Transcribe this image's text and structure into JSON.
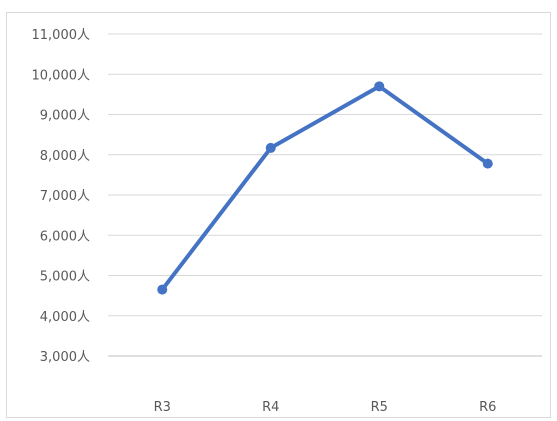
{
  "chart_data": {
    "type": "line",
    "title": "",
    "xlabel": "",
    "ylabel": "",
    "categories": [
      "R3",
      "R4",
      "R5",
      "R6"
    ],
    "series": [
      {
        "values": [
          4650,
          8170,
          9700,
          7780
        ],
        "color": "#4472c4"
      }
    ],
    "ylim": [
      3000,
      11000
    ],
    "y_ticks": [
      3000,
      4000,
      5000,
      6000,
      7000,
      8000,
      9000,
      10000,
      11000
    ],
    "y_tick_labels": [
      "3,000人",
      "4,000人",
      "5,000人",
      "6,000人",
      "7,000人",
      "8,000人",
      "9,000人",
      "10,000人",
      "11,000人"
    ],
    "grid": true,
    "grid_color": "#d9d9d9",
    "axis_color": "#bfbfbf",
    "text_color": "#595959",
    "legend": "none"
  }
}
